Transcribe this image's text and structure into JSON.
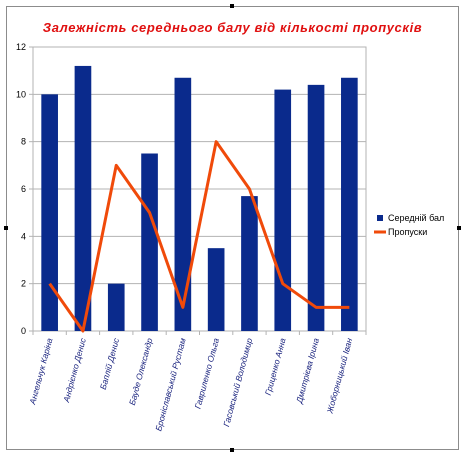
{
  "chart_data": {
    "type": "bar",
    "title": "Залежність середнього балу від кількості пропусків",
    "xlabel": "",
    "ylabel": "",
    "ylim": [
      0,
      12
    ],
    "yticks": [
      0,
      2,
      4,
      6,
      8,
      10,
      12
    ],
    "grid": true,
    "legend": "right",
    "categories": [
      "Ангельчук Каріна",
      "Андрієнко Денис",
      "Баплій Денис",
      "Бауде Олександр",
      "Броніславський Рустам",
      "Гавриленко Ольга",
      "Гасовський Володимир",
      "Гриценко Анна",
      "Дмитрієва Ірина",
      "Жоборницький Іван"
    ],
    "series": [
      {
        "name": "Середній бал",
        "type": "bar",
        "color": "#0a2a8c",
        "values": [
          10,
          11.2,
          2,
          7.5,
          10.7,
          3.5,
          5.7,
          10.2,
          10.4,
          10.7
        ]
      },
      {
        "name": "Пропуски",
        "type": "line",
        "color": "#f04a0a",
        "values": [
          2,
          0,
          7,
          5,
          1,
          8,
          6,
          2,
          1,
          1
        ]
      }
    ]
  }
}
